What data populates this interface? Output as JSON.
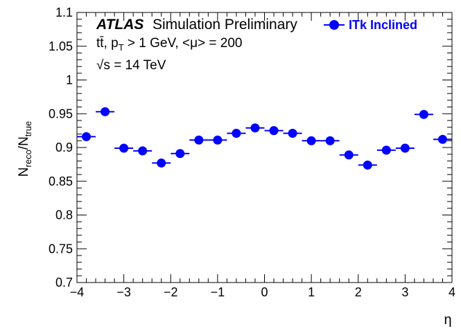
{
  "chart_data": {
    "type": "scatter",
    "xlabel": "η",
    "ylabel": {
      "main": "N",
      "sub1": "reco",
      "sep": "/N",
      "sub2": "true"
    },
    "xlim": [
      -4,
      4
    ],
    "ylim": [
      0.7,
      1.1
    ],
    "x_ticks": [
      "−4",
      "−3",
      "−2",
      "−1",
      "0",
      "1",
      "2",
      "3",
      "4"
    ],
    "y_ticks": [
      "0.7",
      "0.75",
      "0.8",
      "0.85",
      "0.9",
      "0.95",
      "1",
      "1.05",
      "1.1"
    ],
    "annotations": {
      "atlas": "ATLAS",
      "label": "Simulation Preliminary",
      "process": "tt̄, p",
      "process_sub": "T",
      "process_rest": " > 1 GeV, <μ> = 200",
      "energy": "√s = 14 TeV"
    },
    "series": [
      {
        "name": "ITk Inclined",
        "color": "#0000ff",
        "bin_width": 0.4,
        "x": [
          -3.8,
          -3.4,
          -3.0,
          -2.6,
          -2.2,
          -1.8,
          -1.4,
          -1.0,
          -0.6,
          -0.2,
          0.2,
          0.6,
          1.0,
          1.4,
          1.8,
          2.2,
          2.6,
          3.0,
          3.4,
          3.8
        ],
        "y": [
          0.916,
          0.953,
          0.899,
          0.895,
          0.877,
          0.891,
          0.911,
          0.911,
          0.921,
          0.929,
          0.925,
          0.921,
          0.91,
          0.91,
          0.889,
          0.874,
          0.896,
          0.899,
          0.949,
          0.912
        ]
      }
    ]
  }
}
